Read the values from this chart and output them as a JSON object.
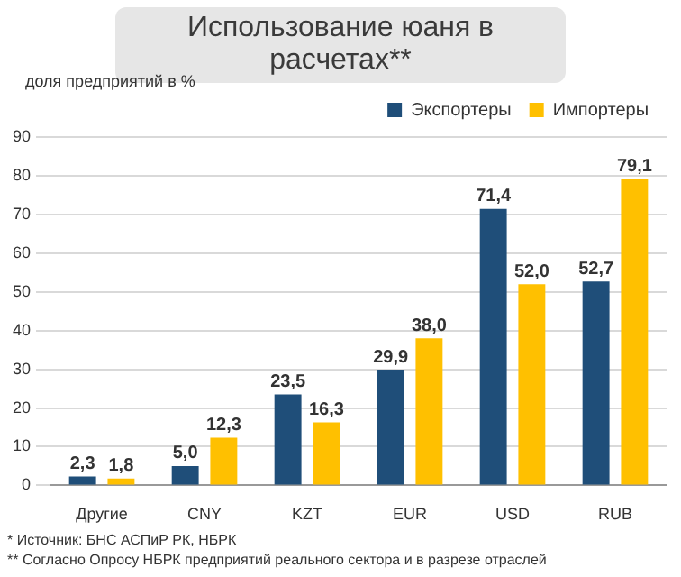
{
  "chart_data": {
    "type": "bar",
    "title": "Использование юаня в расчетах**",
    "ylabel": "доля предприятий в %",
    "categories": [
      "Другие",
      "CNY",
      "KZT",
      "EUR",
      "USD",
      "RUB"
    ],
    "series": [
      {
        "name": "Экспортеры",
        "color": "#1f4e79",
        "values": [
          2.3,
          5.0,
          23.5,
          29.9,
          71.4,
          52.7
        ],
        "value_labels": [
          "2,3",
          "5,0",
          "23,5",
          "29,9",
          "71,4",
          "52,7"
        ]
      },
      {
        "name": "Импортеры",
        "color": "#ffc000",
        "values": [
          1.8,
          12.3,
          16.3,
          38.0,
          52.0,
          79.1
        ],
        "value_labels": [
          "1,8",
          "12,3",
          "16,3",
          "38,0",
          "52,0",
          "79,1"
        ]
      }
    ],
    "ylim": [
      0,
      90
    ],
    "yticks": [
      0,
      10,
      20,
      30,
      40,
      50,
      60,
      70,
      80,
      90
    ],
    "grid": "y",
    "legend": "top right",
    "annotations": [
      "* Источник: БНС АСПиР РК, НБРК",
      "** Согласно Опросу НБРК предприятий реального сектора и в разрезе отраслей"
    ]
  }
}
